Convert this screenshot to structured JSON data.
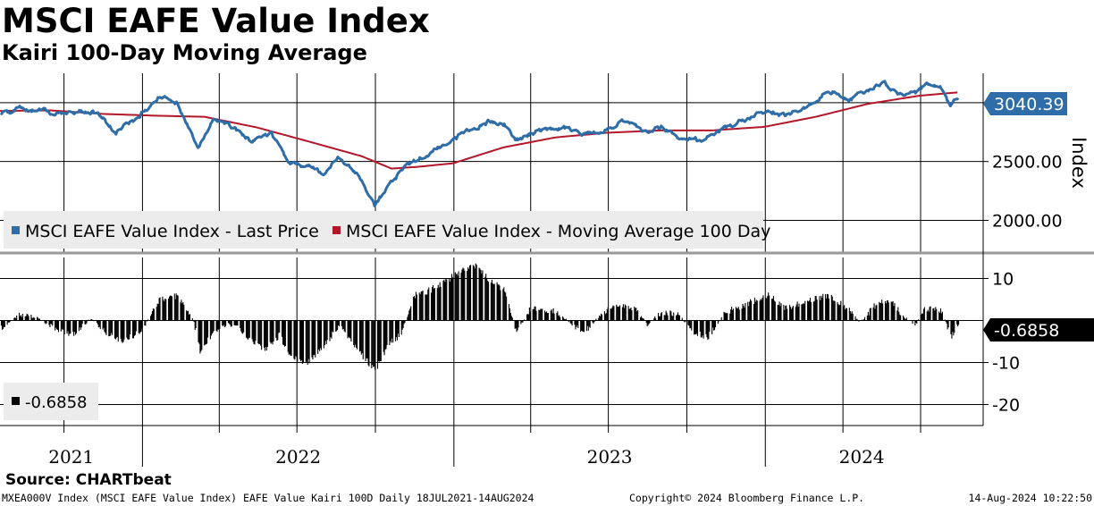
{
  "title": "MSCI EAFE Value Index",
  "subtitle": "Kairi 100-Day Moving Average",
  "source": "Source: CHARTbeat",
  "footer": {
    "left": "MXEA000V Index (MSCI EAFE Value Index) EAFE Value Kairi 100D  Daily 18JUL2021-14AUG2024",
    "center": "Copyright© 2024 Bloomberg Finance L.P.",
    "right": "14-Aug-2024 10:22:50"
  },
  "colors": {
    "price": "#2e6da8",
    "moving_average": "#b3172a",
    "kairi": "#000000",
    "last_price_tag": "#2e6da8",
    "kairi_tag": "#000000"
  },
  "chart_data": [
    {
      "type": "line",
      "panel": "upper",
      "ylabel": "Index",
      "yticks": [
        2000,
        2500
      ],
      "ytick_labels": [
        "2000.00",
        "2500.00"
      ],
      "ylim": [
        1730,
        3250
      ],
      "xlim": [
        "2021-07-18",
        "2024-08-14"
      ],
      "grid": true,
      "legend_position": "bottom-left",
      "last_value_label": "3040.39",
      "series": [
        {
          "name": "MSCI EAFE Value Index - Last Price",
          "color": "#2e6da8",
          "points": [
            [
              "2021-07-18",
              2900
            ],
            [
              "2021-08-10",
              2955
            ],
            [
              "2021-09-05",
              2935
            ],
            [
              "2021-09-30",
              2895
            ],
            [
              "2021-10-15",
              2930
            ],
            [
              "2021-11-10",
              2910
            ],
            [
              "2021-12-01",
              2750
            ],
            [
              "2021-12-25",
              2870
            ],
            [
              "2022-01-20",
              3050
            ],
            [
              "2022-02-10",
              3000
            ],
            [
              "2022-03-07",
              2630
            ],
            [
              "2022-03-25",
              2850
            ],
            [
              "2022-04-15",
              2800
            ],
            [
              "2022-05-10",
              2660
            ],
            [
              "2022-06-01",
              2740
            ],
            [
              "2022-06-22",
              2490
            ],
            [
              "2022-07-10",
              2470
            ],
            [
              "2022-08-01",
              2410
            ],
            [
              "2022-08-20",
              2540
            ],
            [
              "2022-09-10",
              2400
            ],
            [
              "2022-09-30",
              2130
            ],
            [
              "2022-10-15",
              2270
            ],
            [
              "2022-11-01",
              2430
            ],
            [
              "2022-11-25",
              2540
            ],
            [
              "2022-12-20",
              2640
            ],
            [
              "2023-01-15",
              2760
            ],
            [
              "2023-02-10",
              2830
            ],
            [
              "2023-03-01",
              2820
            ],
            [
              "2023-03-15",
              2670
            ],
            [
              "2023-04-10",
              2770
            ],
            [
              "2023-05-10",
              2790
            ],
            [
              "2023-06-01",
              2730
            ],
            [
              "2023-06-25",
              2760
            ],
            [
              "2023-07-20",
              2850
            ],
            [
              "2023-08-10",
              2760
            ],
            [
              "2023-09-01",
              2790
            ],
            [
              "2023-09-20",
              2720
            ],
            [
              "2023-10-20",
              2670
            ],
            [
              "2023-11-15",
              2790
            ],
            [
              "2023-12-10",
              2860
            ],
            [
              "2024-01-05",
              2930
            ],
            [
              "2024-01-25",
              2900
            ],
            [
              "2024-02-20",
              2980
            ],
            [
              "2024-03-15",
              3110
            ],
            [
              "2024-04-10",
              3030
            ],
            [
              "2024-05-01",
              3110
            ],
            [
              "2024-05-20",
              3155
            ],
            [
              "2024-06-10",
              3060
            ],
            [
              "2024-06-25",
              3080
            ],
            [
              "2024-07-10",
              3160
            ],
            [
              "2024-07-25",
              3130
            ],
            [
              "2024-08-05",
              2950
            ],
            [
              "2024-08-14",
              3040.39
            ]
          ]
        },
        {
          "name": "MSCI EAFE Value Index - Moving Average 100 Day",
          "color": "#b3172a",
          "points": [
            [
              "2021-07-18",
              2930
            ],
            [
              "2021-09-15",
              2935
            ],
            [
              "2021-11-15",
              2905
            ],
            [
              "2022-01-15",
              2890
            ],
            [
              "2022-03-15",
              2880
            ],
            [
              "2022-05-15",
              2790
            ],
            [
              "2022-07-15",
              2670
            ],
            [
              "2022-09-15",
              2545
            ],
            [
              "2022-10-20",
              2440
            ],
            [
              "2022-11-20",
              2455
            ],
            [
              "2022-12-31",
              2485
            ],
            [
              "2023-02-28",
              2620
            ],
            [
              "2023-04-30",
              2705
            ],
            [
              "2023-06-30",
              2745
            ],
            [
              "2023-08-31",
              2765
            ],
            [
              "2023-10-31",
              2765
            ],
            [
              "2023-12-31",
              2795
            ],
            [
              "2024-02-29",
              2880
            ],
            [
              "2024-04-30",
              2990
            ],
            [
              "2024-06-30",
              3060
            ],
            [
              "2024-08-14",
              3088
            ]
          ]
        }
      ]
    },
    {
      "type": "bar",
      "panel": "lower",
      "yticks": [
        10,
        -10,
        -20
      ],
      "ytick_labels": [
        "10",
        "-10",
        "-20"
      ],
      "ylim": [
        -25,
        15
      ],
      "grid": true,
      "last_value_label": "-0.6858",
      "legend": "-0.6858",
      "series": [
        {
          "name": "-0.6858",
          "color": "#000000",
          "points": [
            [
              "2021-07-18",
              -2
            ],
            [
              "2021-08-10",
              1.5
            ],
            [
              "2021-09-01",
              0.5
            ],
            [
              "2021-09-20",
              -2
            ],
            [
              "2021-10-10",
              -3.5
            ],
            [
              "2021-11-01",
              0.5
            ],
            [
              "2021-11-20",
              -3
            ],
            [
              "2021-12-10",
              -5
            ],
            [
              "2022-01-01",
              -2
            ],
            [
              "2022-01-20",
              5
            ],
            [
              "2022-02-10",
              6
            ],
            [
              "2022-02-28",
              1
            ],
            [
              "2022-03-10",
              -8
            ],
            [
              "2022-03-20",
              -4
            ],
            [
              "2022-04-10",
              -1
            ],
            [
              "2022-04-25",
              -2
            ],
            [
              "2022-05-10",
              -5
            ],
            [
              "2022-05-25",
              -7
            ],
            [
              "2022-06-10",
              -3.5
            ],
            [
              "2022-06-25",
              -9
            ],
            [
              "2022-07-15",
              -10
            ],
            [
              "2022-08-01",
              -6
            ],
            [
              "2022-08-20",
              -1
            ],
            [
              "2022-09-10",
              -7
            ],
            [
              "2022-09-30",
              -12
            ],
            [
              "2022-10-15",
              -6
            ],
            [
              "2022-10-31",
              -3
            ],
            [
              "2022-11-15",
              6
            ],
            [
              "2022-12-01",
              7
            ],
            [
              "2022-12-20",
              9
            ],
            [
              "2023-01-10",
              12
            ],
            [
              "2023-01-25",
              13
            ],
            [
              "2023-02-10",
              10
            ],
            [
              "2023-03-01",
              7
            ],
            [
              "2023-03-15",
              -3
            ],
            [
              "2023-04-01",
              3
            ],
            [
              "2023-05-01",
              2
            ],
            [
              "2023-06-01",
              -3
            ],
            [
              "2023-06-20",
              1
            ],
            [
              "2023-07-10",
              4
            ],
            [
              "2023-08-01",
              3
            ],
            [
              "2023-08-15",
              -1
            ],
            [
              "2023-09-01",
              2
            ],
            [
              "2023-09-20",
              1.5
            ],
            [
              "2023-10-10",
              -3
            ],
            [
              "2023-10-25",
              -4
            ],
            [
              "2023-11-15",
              2
            ],
            [
              "2023-12-10",
              4
            ],
            [
              "2024-01-05",
              6
            ],
            [
              "2024-01-25",
              3
            ],
            [
              "2024-02-20",
              5
            ],
            [
              "2024-03-15",
              6
            ],
            [
              "2024-04-05",
              3
            ],
            [
              "2024-04-20",
              -0.5
            ],
            [
              "2024-05-10",
              4
            ],
            [
              "2024-05-25",
              5
            ],
            [
              "2024-06-10",
              1
            ],
            [
              "2024-06-25",
              -1
            ],
            [
              "2024-07-05",
              3
            ],
            [
              "2024-07-25",
              2.5
            ],
            [
              "2024-08-05",
              -4
            ],
            [
              "2024-08-14",
              -0.6858
            ]
          ]
        }
      ]
    }
  ],
  "x_axis": {
    "year_labels": [
      "2021",
      "2022",
      "2023",
      "2024"
    ]
  }
}
